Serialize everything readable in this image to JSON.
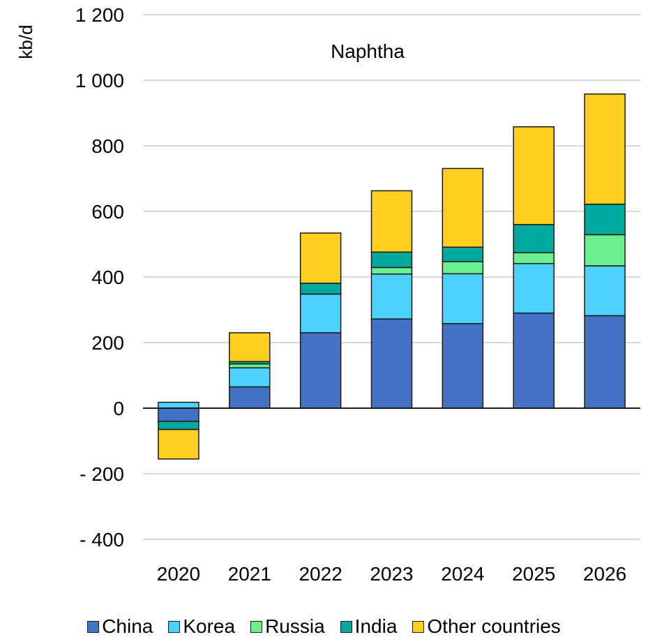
{
  "chart_data": {
    "type": "bar",
    "stacked": true,
    "title": "Naphtha",
    "ylabel": "kb/d",
    "xlabel": "",
    "categories": [
      "2020",
      "2021",
      "2022",
      "2023",
      "2024",
      "2025",
      "2026"
    ],
    "ylim": [
      -400,
      1200
    ],
    "yticks": [
      -400,
      -200,
      0,
      200,
      400,
      600,
      800,
      1000,
      1200
    ],
    "ytick_labels": [
      "- 400",
      "- 200",
      "0",
      "200",
      "400",
      "600",
      "800",
      "1 000",
      "1 200"
    ],
    "grid": true,
    "legend_position": "bottom",
    "series": [
      {
        "name": "China",
        "color": "#4472C4",
        "values": [
          -40,
          65,
          230,
          272,
          258,
          290,
          282
        ]
      },
      {
        "name": "Korea",
        "color": "#4DD2FF",
        "values": [
          18,
          58,
          118,
          137,
          152,
          151,
          152
        ]
      },
      {
        "name": "Russia",
        "color": "#6CF08F",
        "values": [
          0,
          12,
          0,
          20,
          37,
          33,
          95
        ]
      },
      {
        "name": "India",
        "color": "#00A99D",
        "values": [
          -25,
          7,
          33,
          47,
          44,
          86,
          93
        ]
      },
      {
        "name": "Other countries",
        "color": "#FFCF1F",
        "values": [
          -90,
          88,
          153,
          187,
          240,
          298,
          336
        ]
      }
    ]
  }
}
